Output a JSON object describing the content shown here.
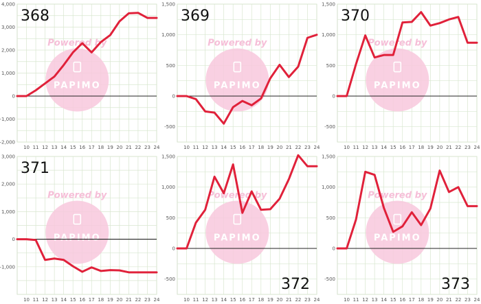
{
  "watermark": {
    "text": "Powered by",
    "logo": "PAPIMO"
  },
  "colors": {
    "line": "#e0213a",
    "grid": "#d8e6cf",
    "zero": "#222222",
    "watermark_circle": "#f8c8dd"
  },
  "x_ticks": [
    "10",
    "11",
    "12",
    "13",
    "14",
    "15",
    "16",
    "17",
    "18",
    "19",
    "20",
    "21",
    "22",
    "23",
    "24"
  ],
  "chart_data": [
    {
      "type": "line",
      "label": "368",
      "x": [
        9,
        10,
        11,
        12,
        13,
        14,
        15,
        16,
        17,
        18,
        19,
        20,
        21,
        22,
        23,
        24
      ],
      "values": [
        0,
        0,
        250,
        550,
        850,
        1350,
        1900,
        2300,
        1900,
        2350,
        2650,
        3250,
        3600,
        3620,
        3400,
        3400
      ],
      "ylim": [
        -2000,
        4000
      ],
      "yticks": [
        -2000,
        -1000,
        0,
        1000,
        2000,
        3000,
        4000
      ],
      "yticklabels": [
        "-2,000",
        "-1,000",
        "0",
        "1,000",
        "2,000",
        "3,000",
        "4,000"
      ],
      "label_pos": "top-left"
    },
    {
      "type": "line",
      "label": "369",
      "x": [
        9,
        10,
        11,
        12,
        13,
        14,
        15,
        16,
        17,
        18,
        19,
        20,
        21,
        22,
        23,
        24
      ],
      "values": [
        0,
        0,
        -50,
        -250,
        -270,
        -450,
        -180,
        -80,
        -150,
        -40,
        290,
        510,
        310,
        480,
        950,
        1000
      ],
      "ylim": [
        -750,
        1500
      ],
      "yticks": [
        -500,
        0,
        500,
        1000,
        1500
      ],
      "yticklabels": [
        "-500",
        "0",
        "500",
        "1,000",
        "1,500"
      ],
      "label_pos": "top-left"
    },
    {
      "type": "line",
      "label": "370",
      "x": [
        9,
        10,
        11,
        12,
        13,
        14,
        15,
        16,
        17,
        18,
        19,
        20,
        21,
        22,
        23,
        24
      ],
      "values": [
        0,
        0,
        520,
        990,
        630,
        670,
        670,
        1200,
        1210,
        1370,
        1150,
        1190,
        1250,
        1290,
        870,
        870
      ],
      "ylim": [
        -750,
        1500
      ],
      "yticks": [
        -500,
        0,
        500,
        1000,
        1500
      ],
      "yticklabels": [
        "-500",
        "0",
        "500",
        "1,000",
        "1,500"
      ],
      "label_pos": "top-left"
    },
    {
      "type": "line",
      "label": "371",
      "x": [
        9,
        10,
        11,
        12,
        13,
        14,
        15,
        16,
        17,
        18,
        19,
        20,
        21,
        22,
        23,
        24
      ],
      "values": [
        0,
        0,
        -30,
        -750,
        -700,
        -750,
        -980,
        -1180,
        -1020,
        -1150,
        -1120,
        -1130,
        -1200,
        -1200,
        -1200,
        -1200
      ],
      "ylim": [
        -2000,
        3000
      ],
      "yticks": [
        -1000,
        0,
        1000,
        2000,
        3000
      ],
      "yticklabels": [
        "-1,000",
        "0",
        "1,000",
        "2,000",
        "3,000"
      ],
      "label_pos": "top-left"
    },
    {
      "type": "line",
      "label": "372",
      "x": [
        9,
        10,
        11,
        12,
        13,
        14,
        15,
        16,
        17,
        18,
        19,
        20,
        21,
        22,
        23,
        24
      ],
      "values": [
        0,
        0,
        420,
        630,
        1170,
        900,
        1370,
        580,
        930,
        630,
        640,
        810,
        1130,
        1520,
        1340,
        1340
      ],
      "ylim": [
        -750,
        1500
      ],
      "yticks": [
        -500,
        0,
        500,
        1000,
        1500
      ],
      "yticklabels": [
        "-500",
        "0",
        "500",
        "1,000",
        "1,500"
      ],
      "label_pos": "bottom-right"
    },
    {
      "type": "line",
      "label": "373",
      "x": [
        9,
        10,
        11,
        12,
        13,
        14,
        15,
        16,
        17,
        18,
        19,
        20,
        21,
        22,
        23,
        24
      ],
      "values": [
        0,
        0,
        470,
        1250,
        1200,
        660,
        270,
        360,
        590,
        380,
        650,
        1270,
        920,
        1000,
        690,
        690
      ],
      "ylim": [
        -750,
        1500
      ],
      "yticks": [
        -500,
        0,
        500,
        1000,
        1500
      ],
      "yticklabels": [
        "-500",
        "0",
        "500",
        "1,000",
        "1,500"
      ],
      "label_pos": "bottom-right"
    }
  ]
}
